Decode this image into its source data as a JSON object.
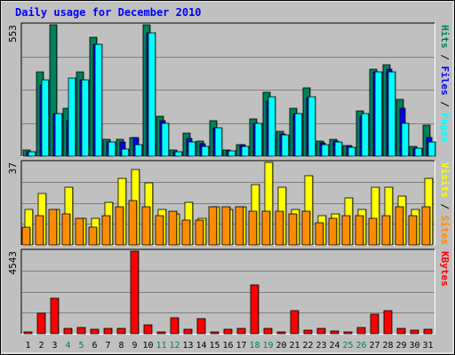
{
  "chart_data": {
    "type": "bar",
    "title": "Daily usage for December 2010",
    "categories": [
      "1",
      "2",
      "3",
      "4",
      "5",
      "6",
      "7",
      "8",
      "9",
      "10",
      "11",
      "12",
      "13",
      "14",
      "15",
      "16",
      "17",
      "18",
      "19",
      "20",
      "21",
      "22",
      "23",
      "24",
      "25",
      "26",
      "27",
      "28",
      "29",
      "30",
      "31"
    ],
    "weekend_days": [
      "4",
      "5",
      "11",
      "12",
      "18",
      "19",
      "25",
      "26"
    ],
    "panels": [
      {
        "id": "hits-files-pages",
        "max_label": "553",
        "ylim": [
          0,
          553
        ],
        "right_labels": [
          "Pages",
          "Files",
          "Hits"
        ],
        "series": [
          {
            "name": "Hits",
            "color": "#00805c",
            "values": [
              28,
              356,
              553,
              200,
              356,
              500,
              70,
              70,
              77,
              553,
              167,
              28,
              96,
              64,
              150,
              28,
              48,
              156,
              270,
              105,
              200,
              288,
              64,
              71,
              45,
              190,
              366,
              386,
              240,
              40,
              130
            ]
          },
          {
            "name": "Files",
            "color": "#0000ff",
            "values": [
              20,
              300,
              180,
              150,
              320,
              470,
              60,
              60,
              80,
              520,
              150,
              20,
              75,
              54,
              120,
              22,
              48,
              140,
              230,
              95,
              180,
              245,
              55,
              65,
              43,
              170,
              356,
              366,
              200,
              35,
              80
            ]
          },
          {
            "name": "Pages",
            "color": "#00ffff",
            "values": [
              20,
              320,
              180,
              330,
              320,
              470,
              60,
              30,
              50,
              520,
              140,
              20,
              58,
              40,
              120,
              22,
              40,
              140,
              250,
              90,
              180,
              250,
              50,
              60,
              38,
              180,
              356,
              356,
              140,
              35,
              60
            ]
          }
        ]
      },
      {
        "id": "visits-sites",
        "max_label": "37",
        "ylim": [
          0,
          37
        ],
        "right_labels": [
          "Sites",
          "Visits"
        ],
        "series": [
          {
            "name": "Visits",
            "color": "#ffff00",
            "values": [
              16,
              23,
              16,
              26,
              12,
              12,
              19,
              30,
              34,
              28,
              16,
              14,
              19,
              12,
              17,
              16,
              17,
              27,
              37,
              26,
              16,
              31,
              13,
              14,
              21,
              16,
              26,
              26,
              22,
              16,
              30
            ]
          },
          {
            "name": "Sites",
            "color": "#ff8c00",
            "values": [
              8,
              13,
              16,
              14,
              12,
              8,
              13,
              17,
              20,
              17,
              13,
              15,
              11,
              11,
              17,
              17,
              17,
              15,
              15,
              15,
              14,
              15,
              10,
              12,
              13,
              13,
              12,
              13,
              17,
              13,
              17
            ]
          }
        ]
      },
      {
        "id": "kbytes",
        "max_label": "4543",
        "ylim": [
          0,
          4543
        ],
        "right_labels": [
          "KBytes"
        ],
        "series": [
          {
            "name": "KBytes",
            "color": "#ff0000",
            "values": [
              100,
              1120,
              1960,
              300,
              340,
              220,
              280,
              280,
              4543,
              480,
              80,
              880,
              220,
              830,
              120,
              220,
              300,
              2710,
              300,
              100,
              1250,
              180,
              300,
              160,
              120,
              320,
              1070,
              1260,
              300,
              180,
              220
            ]
          }
        ]
      }
    ]
  }
}
